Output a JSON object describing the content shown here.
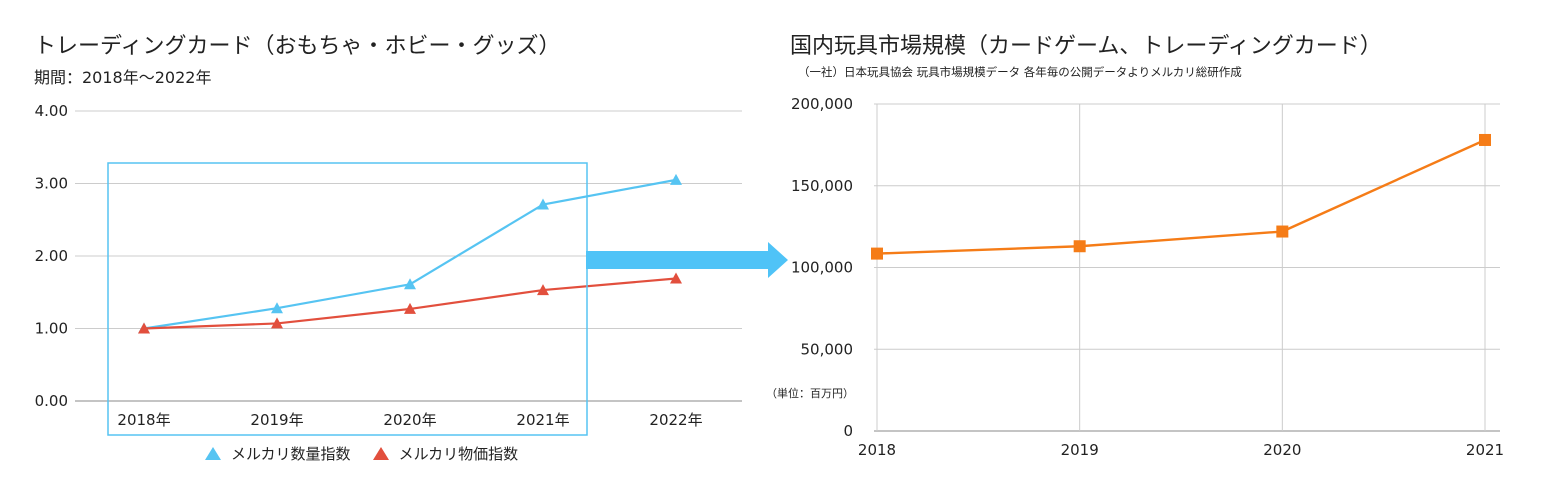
{
  "colors": {
    "count_series": "#56c4f2",
    "price_series": "#e24f3d",
    "market_series": "#f57c17",
    "grid": "#cccccc",
    "box": "#56c4f2",
    "arrow": "#4fc3f7"
  },
  "left_chart": {
    "title": "トレーディングカード（おもちゃ・ホビー・グッズ）",
    "subtitle": "期間：2018年〜2022年"
  },
  "right_chart": {
    "title": "国内玩具市場規模（カードゲーム、トレーディングカード）",
    "source": "（一社）日本玩具協会 玩具市場規模データ 各年毎の公開データよりメルカリ総研作成",
    "unit_label": "（単位：百万円）"
  },
  "chart_data": [
    {
      "type": "line",
      "title": "トレーディングカード（おもちゃ・ホビー・グッズ）",
      "subtitle": "期間：2018年〜2022年",
      "categories": [
        "2018年",
        "2019年",
        "2020年",
        "2021年",
        "2022年"
      ],
      "y_ticks": [
        "0.00",
        "1.00",
        "2.00",
        "3.00",
        "4.00"
      ],
      "ylim": [
        0,
        4
      ],
      "series": [
        {
          "name": "メルカリ数量指数",
          "values": [
            1.0,
            1.28,
            1.61,
            2.71,
            3.05
          ]
        },
        {
          "name": "メルカリ物価指数",
          "values": [
            1.0,
            1.07,
            1.27,
            1.53,
            1.69
          ]
        }
      ],
      "legend": "bottom",
      "highlight_range": [
        "2018年",
        "2021年"
      ]
    },
    {
      "type": "line",
      "title": "国内玩具市場規模（カードゲーム、トレーディングカード）",
      "categories": [
        "2018",
        "2019",
        "2020",
        "2021"
      ],
      "y_ticks": [
        "0",
        "50,000",
        "100,000",
        "150,000",
        "200,000"
      ],
      "ylim": [
        0,
        200000
      ],
      "series": [
        {
          "name": "国内玩具市場規模",
          "values": [
            108500,
            113000,
            122000,
            178000
          ]
        }
      ],
      "ylabel": "（単位：百万円）"
    }
  ]
}
